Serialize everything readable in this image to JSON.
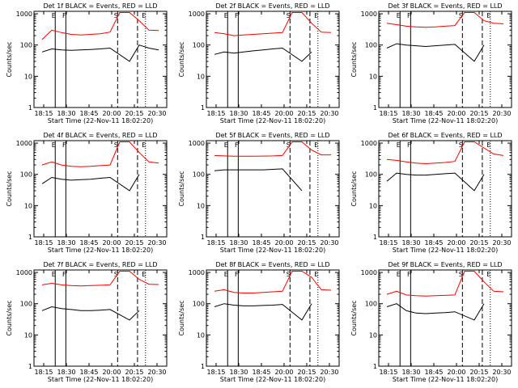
{
  "chart_data": [
    {
      "type": "line",
      "title": "Det 1f BLACK = Events, RED = LLD",
      "xlabel": "Start Time (22-Nov-11 18:02:20)",
      "ylabel": "Counts/sec",
      "x_ticks": [
        "18:15",
        "18:30",
        "18:45",
        "20:00",
        "20:15",
        "20:30"
      ],
      "y_ticks": [
        "1",
        "10",
        "100",
        "1000"
      ],
      "ylim": [
        1,
        1200
      ],
      "markers": [
        "E",
        "F",
        "S",
        "E"
      ],
      "series": [
        {
          "name": "Events",
          "color": "#000000",
          "values": [
            60,
            75,
            70,
            68,
            70,
            72,
            75,
            80,
            0,
            30,
            100,
            80,
            70
          ]
        },
        {
          "name": "LLD",
          "color": "#ff0000",
          "values": [
            150,
            300,
            250,
            220,
            210,
            220,
            230,
            260,
            1100,
            1100,
            600,
            300,
            290
          ]
        }
      ]
    },
    {
      "type": "line",
      "title": "Det 2f BLACK = Events, RED = LLD",
      "xlabel": "Start Time (22-Nov-11 18:02:20)",
      "ylabel": "Counts/sec",
      "x_ticks": [
        "18:15",
        "18:30",
        "18:45",
        "20:00",
        "20:15",
        "20:30"
      ],
      "y_ticks": [
        "1",
        "10",
        "100",
        "1000"
      ],
      "ylim": [
        1,
        1200
      ],
      "markers": [
        "E",
        "F",
        "S",
        "E"
      ],
      "series": [
        {
          "name": "Events",
          "color": "#000000",
          "values": [
            50,
            60,
            55,
            60,
            65,
            70,
            75,
            80,
            0,
            30,
            60,
            0,
            0
          ]
        },
        {
          "name": "LLD",
          "color": "#ff0000",
          "values": [
            250,
            230,
            200,
            210,
            220,
            230,
            240,
            250,
            1100,
            1100,
            500,
            260,
            250
          ]
        }
      ]
    },
    {
      "type": "line",
      "title": "Det 3f BLACK = Events, RED = LLD",
      "xlabel": "Start Time (22-Nov-11 18:02:20)",
      "ylabel": "Counts/sec",
      "x_ticks": [
        "18:15",
        "18:30",
        "18:45",
        "20:00",
        "20:15",
        "20:30"
      ],
      "y_ticks": [
        "1",
        "10",
        "100",
        "1000"
      ],
      "ylim": [
        1,
        1200
      ],
      "markers": [
        "E",
        "F",
        "S",
        "E"
      ],
      "series": [
        {
          "name": "Events",
          "color": "#000000",
          "values": [
            80,
            110,
            100,
            95,
            90,
            95,
            100,
            105,
            0,
            30,
            100,
            0,
            0
          ]
        },
        {
          "name": "LLD",
          "color": "#ff0000",
          "values": [
            500,
            450,
            400,
            380,
            370,
            380,
            400,
            420,
            1100,
            1100,
            600,
            500,
            480
          ]
        }
      ]
    },
    {
      "type": "line",
      "title": "Det 4f BLACK = Events, RED = LLD",
      "xlabel": "Start Time (22-Nov-11 18:02:20)",
      "ylabel": "Counts/sec",
      "x_ticks": [
        "18:15",
        "18:30",
        "18:45",
        "20:00",
        "20:15",
        "20:30"
      ],
      "y_ticks": [
        "1",
        "10",
        "100",
        "1000"
      ],
      "ylim": [
        1,
        1200
      ],
      "markers": [
        "E",
        "F",
        "S",
        "E"
      ],
      "series": [
        {
          "name": "Events",
          "color": "#000000",
          "values": [
            50,
            80,
            70,
            65,
            68,
            70,
            75,
            80,
            0,
            30,
            100,
            0,
            0
          ]
        },
        {
          "name": "LLD",
          "color": "#ff0000",
          "values": [
            200,
            250,
            200,
            180,
            175,
            180,
            190,
            200,
            1100,
            1100,
            500,
            250,
            230
          ]
        }
      ]
    },
    {
      "type": "line",
      "title": "Det 5f BLACK = Events, RED = LLD",
      "xlabel": "Start Time (22-Nov-11 18:02:20)",
      "ylabel": "Counts/sec",
      "x_ticks": [
        "18:15",
        "18:30",
        "18:45",
        "20:00",
        "20:15",
        "20:30"
      ],
      "y_ticks": [
        "1",
        "10",
        "100",
        "1000"
      ],
      "ylim": [
        1,
        1200
      ],
      "markers": [
        "E",
        "F",
        "S",
        "E"
      ],
      "series": [
        {
          "name": "Events",
          "color": "#000000",
          "values": [
            130,
            140,
            140,
            140,
            140,
            140,
            145,
            150,
            0,
            30,
            0,
            0,
            0
          ]
        },
        {
          "name": "LLD",
          "color": "#ff0000",
          "values": [
            400,
            390,
            380,
            380,
            380,
            385,
            390,
            400,
            1100,
            1100,
            600,
            420,
            420
          ]
        }
      ]
    },
    {
      "type": "line",
      "title": "Det 6f BLACK = Events, RED = LLD",
      "xlabel": "Start Time (22-Nov-11 18:02:20)",
      "ylabel": "Counts/sec",
      "x_ticks": [
        "18:15",
        "18:30",
        "18:45",
        "20:00",
        "20:15",
        "20:30"
      ],
      "y_ticks": [
        "1",
        "10",
        "100",
        "1000"
      ],
      "ylim": [
        1,
        1200
      ],
      "markers": [
        "E",
        "F",
        "S",
        "E"
      ],
      "series": [
        {
          "name": "Events",
          "color": "#000000",
          "values": [
            60,
            110,
            100,
            95,
            95,
            100,
            105,
            110,
            0,
            30,
            100,
            0,
            0
          ]
        },
        {
          "name": "LLD",
          "color": "#ff0000",
          "values": [
            300,
            280,
            250,
            230,
            220,
            230,
            240,
            260,
            1100,
            1100,
            700,
            450,
            400
          ]
        }
      ]
    },
    {
      "type": "line",
      "title": "Det 7f BLACK = Events, RED = LLD",
      "xlabel": "Start Time (22-Nov-11 18:02:20)",
      "ylabel": "Counts/sec",
      "x_ticks": [
        "18:15",
        "18:30",
        "18:45",
        "20:00",
        "20:15",
        "20:30"
      ],
      "y_ticks": [
        "1",
        "10",
        "100",
        "1000"
      ],
      "ylim": [
        1,
        1200
      ],
      "markers": [
        "E",
        "F",
        "S",
        "E"
      ],
      "series": [
        {
          "name": "Events",
          "color": "#000000",
          "values": [
            60,
            80,
            70,
            65,
            60,
            60,
            62,
            65,
            0,
            30,
            60,
            0,
            0
          ]
        },
        {
          "name": "LLD",
          "color": "#ff0000",
          "values": [
            400,
            450,
            400,
            380,
            370,
            380,
            390,
            400,
            1100,
            1100,
            600,
            420,
            410
          ]
        }
      ]
    },
    {
      "type": "line",
      "title": "Det 8f BLACK = Events, RED = LLD",
      "xlabel": "Start Time (22-Nov-11 18:02:20)",
      "ylabel": "Counts/sec",
      "x_ticks": [
        "18:15",
        "18:30",
        "18:45",
        "20:00",
        "20:15",
        "20:30"
      ],
      "y_ticks": [
        "1",
        "10",
        "100",
        "1000"
      ],
      "ylim": [
        1,
        1200
      ],
      "markers": [
        "E",
        "F",
        "S",
        "E"
      ],
      "series": [
        {
          "name": "Events",
          "color": "#000000",
          "values": [
            80,
            100,
            90,
            85,
            85,
            88,
            90,
            95,
            0,
            30,
            100,
            0,
            0
          ]
        },
        {
          "name": "LLD",
          "color": "#ff0000",
          "values": [
            250,
            280,
            230,
            220,
            220,
            230,
            240,
            250,
            1100,
            1100,
            700,
            280,
            270
          ]
        }
      ]
    },
    {
      "type": "line",
      "title": "Det 9f BLACK = Events, RED = LLD",
      "xlabel": "Start Time (22-Nov-11 18:02:20)",
      "ylabel": "Counts/sec",
      "x_ticks": [
        "18:15",
        "18:30",
        "18:45",
        "20:00",
        "20:15",
        "20:30"
      ],
      "y_ticks": [
        "1",
        "10",
        "100",
        "1000"
      ],
      "ylim": [
        1,
        1200
      ],
      "markers": [
        "E",
        "F",
        "S",
        "E"
      ],
      "series": [
        {
          "name": "Events",
          "color": "#000000",
          "values": [
            80,
            100,
            60,
            50,
            48,
            50,
            52,
            55,
            0,
            30,
            100,
            0,
            0
          ]
        },
        {
          "name": "LLD",
          "color": "#ff0000",
          "values": [
            200,
            250,
            190,
            180,
            175,
            180,
            185,
            190,
            1100,
            1100,
            500,
            250,
            240
          ]
        }
      ]
    }
  ]
}
